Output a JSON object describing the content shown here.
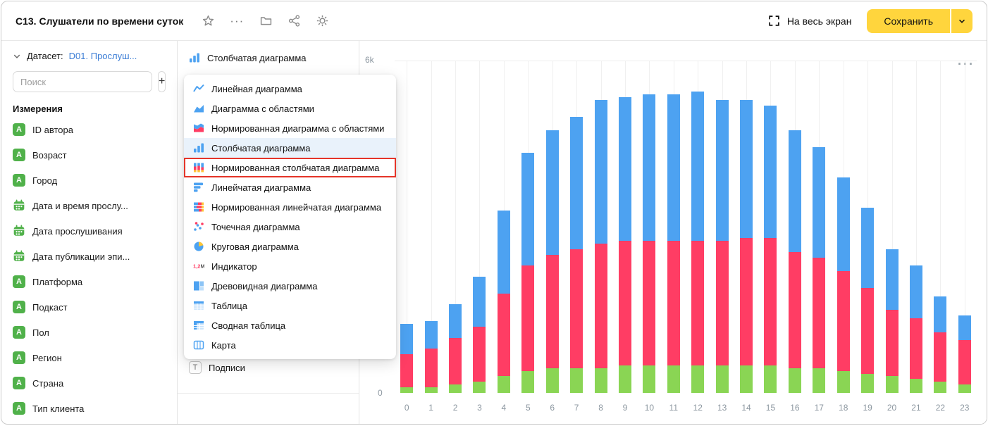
{
  "colors": {
    "accent_yellow": "#ffd53d",
    "link_blue": "#3a7cd5",
    "icon_green": "#50b14a",
    "selected_row_bg": "#e9f2fb",
    "annotation_red": "#e53529"
  },
  "icons": {
    "more": "···"
  },
  "header": {
    "title": "C13. Слушатели по времени суток",
    "fullscreen_label": "На весь экран",
    "save_label": "Сохранить"
  },
  "sidebar": {
    "dataset_label": "Датасет:",
    "dataset_name": "D01. Прослуш...",
    "search_placeholder": "Поиск",
    "add_label": "+",
    "dimensions_heading": "Измерения",
    "fields": [
      {
        "name": "ID автора",
        "type": "string"
      },
      {
        "name": "Возраст",
        "type": "string"
      },
      {
        "name": "Город",
        "type": "string"
      },
      {
        "name": "Дата и время прослу...",
        "type": "date"
      },
      {
        "name": "Дата прослушивания",
        "type": "date"
      },
      {
        "name": "Дата публикации эпи...",
        "type": "date"
      },
      {
        "name": "Платформа",
        "type": "string"
      },
      {
        "name": "Подкаст",
        "type": "string"
      },
      {
        "name": "Пол",
        "type": "string"
      },
      {
        "name": "Регион",
        "type": "string"
      },
      {
        "name": "Страна",
        "type": "string"
      },
      {
        "name": "Тип клиента",
        "type": "string"
      }
    ]
  },
  "panel": {
    "selected_chart_type": "Столбчатая диаграмма",
    "selected_chart_icon": "column-chart-icon",
    "labels_label": "Подписи",
    "labels_icon": "T"
  },
  "dropdown": {
    "items": [
      {
        "label": "Линейная диаграмма",
        "icon": "line-chart-icon",
        "selected": false,
        "annotated": false
      },
      {
        "label": "Диаграмма с областями",
        "icon": "area-chart-icon",
        "selected": false,
        "annotated": false
      },
      {
        "label": "Нормированная диаграмма с областями",
        "icon": "normalized-area-chart-icon",
        "selected": false,
        "annotated": false
      },
      {
        "label": "Столбчатая диаграмма",
        "icon": "column-chart-icon",
        "selected": true,
        "annotated": false
      },
      {
        "label": "Нормированная столбчатая диаграмма",
        "icon": "normalized-column-chart-icon",
        "selected": false,
        "annotated": true
      },
      {
        "label": "Линейчатая диаграмма",
        "icon": "bar-chart-icon",
        "selected": false,
        "annotated": false
      },
      {
        "label": "Нормированная линейчатая диаграмма",
        "icon": "normalized-bar-chart-icon",
        "selected": false,
        "annotated": false
      },
      {
        "label": "Точечная диаграмма",
        "icon": "scatter-chart-icon",
        "selected": false,
        "annotated": false
      },
      {
        "label": "Круговая диаграмма",
        "icon": "pie-chart-icon",
        "selected": false,
        "annotated": false
      },
      {
        "label": "Индикатор",
        "icon": "indicator-icon",
        "selected": false,
        "annotated": false
      },
      {
        "label": "Древовидная диаграмма",
        "icon": "treemap-chart-icon",
        "selected": false,
        "annotated": false
      },
      {
        "label": "Таблица",
        "icon": "table-icon",
        "selected": false,
        "annotated": false
      },
      {
        "label": "Сводная таблица",
        "icon": "pivot-table-icon",
        "selected": false,
        "annotated": false
      },
      {
        "label": "Карта",
        "icon": "map-icon",
        "selected": false,
        "annotated": false
      }
    ]
  },
  "chart_data": {
    "type": "bar",
    "stacked": true,
    "x": [
      0,
      1,
      2,
      3,
      4,
      5,
      6,
      7,
      8,
      9,
      10,
      11,
      12,
      13,
      14,
      15,
      16,
      17,
      18,
      19,
      20,
      21,
      22,
      23
    ],
    "series": [
      {
        "name": "green",
        "color": "#8AD554",
        "values": [
          100,
          100,
          150,
          200,
          300,
          400,
          450,
          450,
          450,
          500,
          500,
          500,
          500,
          500,
          500,
          500,
          450,
          450,
          400,
          350,
          300,
          250,
          200,
          150
        ]
      },
      {
        "name": "pink",
        "color": "#FF3D64",
        "values": [
          600,
          700,
          850,
          1000,
          1500,
          1900,
          2050,
          2150,
          2250,
          2250,
          2250,
          2250,
          2250,
          2250,
          2300,
          2300,
          2100,
          2000,
          1800,
          1550,
          1200,
          1100,
          900,
          800
        ]
      },
      {
        "name": "blue",
        "color": "#4DA2F1",
        "values": [
          550,
          500,
          600,
          900,
          1500,
          2050,
          2250,
          2400,
          2600,
          2600,
          2650,
          2650,
          2700,
          2550,
          2500,
          2400,
          2200,
          2000,
          1700,
          1450,
          1100,
          950,
          650,
          450
        ]
      }
    ],
    "ylim": [
      0,
      6000
    ],
    "ytick_labels": [
      "0",
      "6k"
    ],
    "grid": "vertical",
    "legend": "none",
    "title": "",
    "xlabel": "",
    "ylabel": ""
  }
}
